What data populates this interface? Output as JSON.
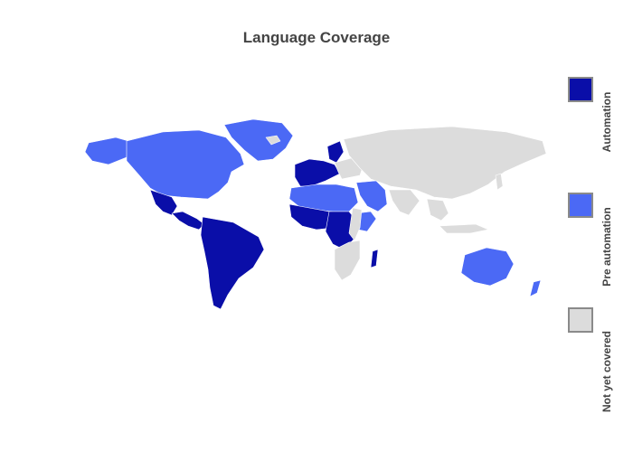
{
  "title": "Language Coverage",
  "categories": {
    "automation": {
      "label": "Automation",
      "color": "#0a0ea8"
    },
    "pre_automation": {
      "label": "Pre automation",
      "color": "#4b69f5"
    },
    "not_covered": {
      "label": "Not yet covered",
      "color": "#dcdcdc"
    }
  },
  "legend_border_color": "#8a8a8a",
  "regions": {
    "north_america": "pre_automation",
    "greenland": "pre_automation",
    "alaska": "pre_automation",
    "mexico": "automation",
    "central_america": "automation",
    "south_america": "automation",
    "western_europe": "automation",
    "sweden_norway": "automation",
    "eastern_europe": "not_covered",
    "russia_asia": "not_covered",
    "middle_east": "pre_automation",
    "north_africa": "pre_automation",
    "west_africa": "automation",
    "central_africa": "automation",
    "east_africa": "not_covered",
    "horn_of_africa": "pre_automation",
    "southern_africa": "not_covered",
    "madagascar": "automation",
    "india_region": "not_covered",
    "southeast_asia": "not_covered",
    "japan": "not_covered",
    "indonesia": "not_covered",
    "australia": "pre_automation",
    "new_zealand": "pre_automation",
    "iceland": "not_covered"
  }
}
